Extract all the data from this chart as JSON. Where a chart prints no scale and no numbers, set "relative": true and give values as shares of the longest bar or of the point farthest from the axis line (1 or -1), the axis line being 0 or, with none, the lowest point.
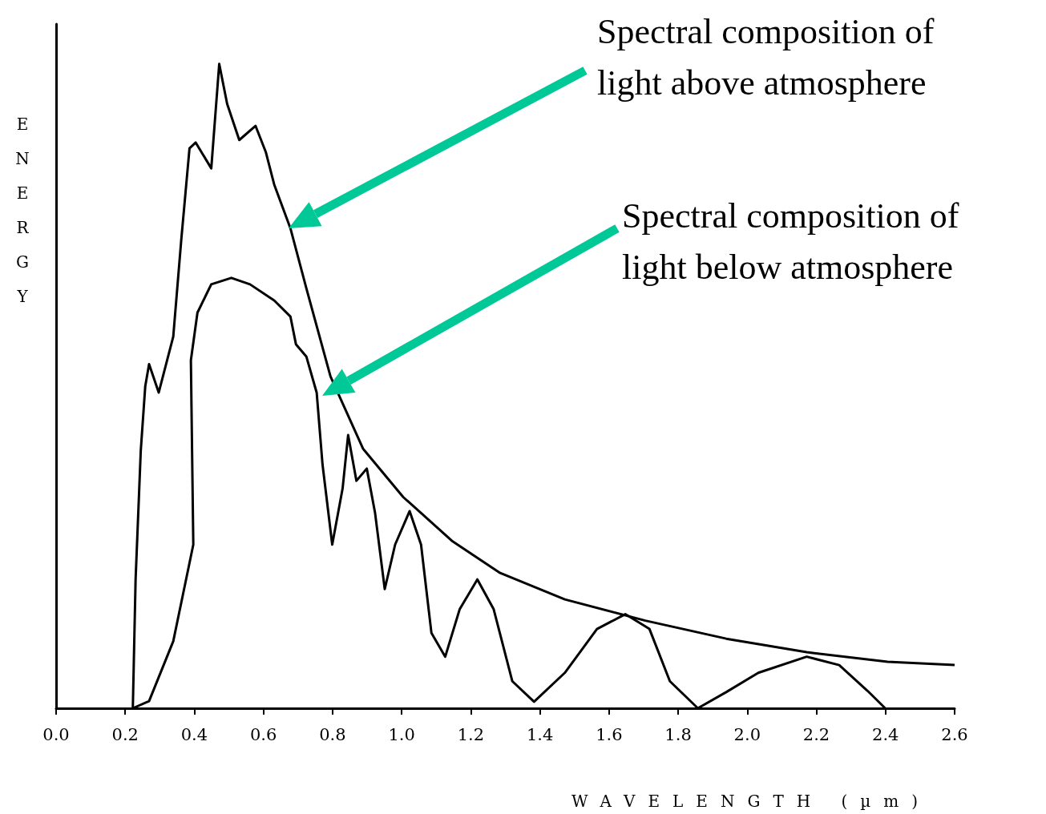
{
  "chart_data": {
    "type": "line",
    "relative": true,
    "xlabel": "WAVELENGTH (µm)",
    "ylabel": "ENERGY",
    "xlim": [
      0,
      2.6
    ],
    "xticks": [
      {
        "value": 0,
        "label": "0.0"
      },
      {
        "value": 0.2,
        "label": "0.2"
      },
      {
        "value": 0.4,
        "label": "0.4"
      },
      {
        "value": 0.6,
        "label": "0.6"
      },
      {
        "value": 0.8,
        "label": "0.8"
      },
      {
        "value": 1,
        "label": "1.0"
      },
      {
        "value": 1.2,
        "label": "1.2"
      },
      {
        "value": 1.4,
        "label": "1.4"
      },
      {
        "value": 1.6,
        "label": "1.6"
      },
      {
        "value": 1.8,
        "label": "1.8"
      },
      {
        "value": 2,
        "label": "2.0"
      },
      {
        "value": 2.2,
        "label": "2.2"
      },
      {
        "value": 2.4,
        "label": "2.4"
      },
      {
        "value": 2.6,
        "label": "2.6"
      }
    ],
    "tick_labels": "x",
    "grid": false,
    "marker": "none",
    "line_style": "solid",
    "series": [
      {
        "color": "#000000",
        "x": [
          0.222,
          0.23,
          0.245,
          0.258,
          0.269,
          0.297,
          0.339,
          0.362,
          0.386,
          0.404,
          0.449,
          0.472,
          0.495,
          0.53,
          0.577,
          0.607,
          0.631,
          0.678,
          0.724,
          0.794,
          0.888,
          1.004,
          1.145,
          1.285,
          1.472,
          1.705,
          1.939,
          2.172,
          2.406,
          2.6
        ],
        "values": [
          0,
          0.2,
          0.4,
          0.5,
          0.534,
          0.49,
          0.577,
          0.726,
          0.869,
          0.878,
          0.838,
          1,
          0.938,
          0.882,
          0.904,
          0.863,
          0.813,
          0.745,
          0.652,
          0.515,
          0.403,
          0.328,
          0.26,
          0.21,
          0.169,
          0.136,
          0.108,
          0.087,
          0.072,
          0.067
        ]
      },
      {
        "color": "#000000",
        "x": [
          0.222,
          0.269,
          0.339,
          0.397,
          0.39,
          0.409,
          0.449,
          0.507,
          0.561,
          0.631,
          0.678,
          0.694,
          0.724,
          0.754,
          0.771,
          0.799,
          0.829,
          0.845,
          0.869,
          0.899,
          0.923,
          0.951,
          0.981,
          1.023,
          1.056,
          1.086,
          1.126,
          1.168,
          1.219,
          1.266,
          1.32,
          1.383,
          1.472,
          1.565,
          1.647,
          1.717,
          1.776,
          1.857,
          1.939,
          2.032,
          2.172,
          2.266,
          2.348,
          2.399
        ],
        "values": [
          0,
          0.011,
          0.104,
          0.254,
          0.54,
          0.614,
          0.658,
          0.668,
          0.658,
          0.633,
          0.608,
          0.565,
          0.546,
          0.49,
          0.378,
          0.254,
          0.341,
          0.424,
          0.353,
          0.372,
          0.303,
          0.185,
          0.254,
          0.306,
          0.254,
          0.117,
          0.08,
          0.154,
          0.2,
          0.154,
          0.042,
          0.01,
          0.055,
          0.123,
          0.146,
          0.123,
          0.042,
          0,
          0.025,
          0.055,
          0.08,
          0.067,
          0.027,
          0
        ]
      }
    ],
    "annotations": [
      "Spectral composition of light above atmosphere",
      "Spectral composition of light below atmosphere"
    ]
  }
}
